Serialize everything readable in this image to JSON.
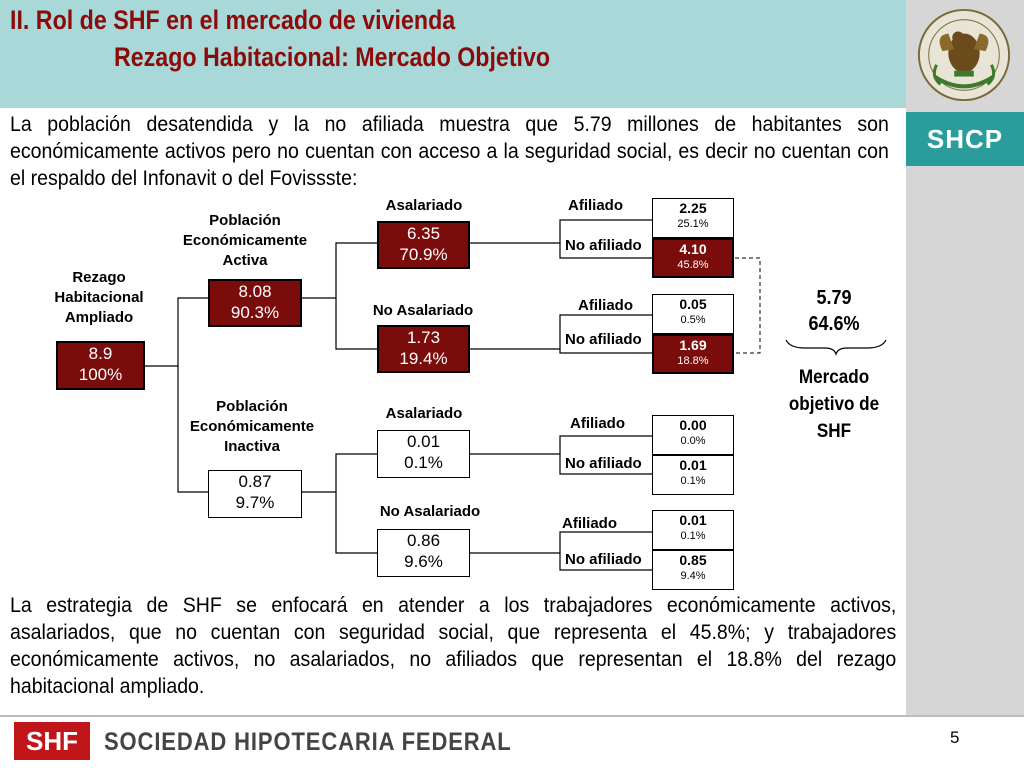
{
  "header": {
    "title_line1": "II. Rol de SHF en el mercado de vivienda",
    "title_line2": "Rezago Habitacional: Mercado Objetivo"
  },
  "sidebar": {
    "brand": "SHCP",
    "seal_icon": "mexican-coat-of-arms-seal"
  },
  "intro_text": "La población desatendida y la no afiliada muestra que 5.79 millones de habitantes son económicamente activos pero no cuentan con acceso a la seguridad social, es decir no cuentan con el respaldo del Infonavit o del Fovissste:",
  "tree": {
    "root": {
      "label": "Rezago Habitacional Ampliado",
      "value": "8.9",
      "pct": "100%"
    },
    "activa": {
      "label": "Población Económicamente Activa",
      "value": "8.08",
      "pct": "90.3%",
      "asalariado": {
        "label": "Asalariado",
        "value": "6.35",
        "pct": "70.9%",
        "afiliado": {
          "label": "Afiliado",
          "value": "2.25",
          "pct": "25.1%"
        },
        "no_afiliado": {
          "label": "No afiliado",
          "value": "4.10",
          "pct": "45.8%"
        }
      },
      "no_asalariado": {
        "label": "No Asalariado",
        "value": "1.73",
        "pct": "19.4%",
        "afiliado": {
          "label": "Afiliado",
          "value": "0.05",
          "pct": "0.5%"
        },
        "no_afiliado": {
          "label": "No afiliado",
          "value": "1.69",
          "pct": "18.8%"
        }
      }
    },
    "inactiva": {
      "label": "Población Económicamente Inactiva",
      "value": "0.87",
      "pct": "9.7%",
      "asalariado": {
        "label": "Asalariado",
        "value": "0.01",
        "pct": "0.1%",
        "afiliado": {
          "label": "Afiliado",
          "value": "0.00",
          "pct": "0.0%"
        },
        "no_afiliado": {
          "label": "No afiliado",
          "value": "0.01",
          "pct": "0.1%"
        }
      },
      "no_asalariado": {
        "label": "No Asalariado",
        "value": "0.86",
        "pct": "9.6%",
        "afiliado": {
          "label": "Afiliado",
          "value": "0.01",
          "pct": "0.1%"
        },
        "no_afiliado": {
          "label": "No afiliado",
          "value": "0.85",
          "pct": "9.4%"
        }
      }
    }
  },
  "summary": {
    "value": "5.79",
    "pct": "64.6%",
    "label": "Mercado objetivo de SHF"
  },
  "outro_text": "La estrategia de SHF se enfocará en atender a los trabajadores económicamente activos, asalariados, que no cuentan con seguridad social, que representa el 45.8%; y trabajadores económicamente activos, no asalariados, no afiliados que representan el 18.8% del rezago habitacional ampliado.",
  "footer": {
    "logo": "SHF",
    "org_name": "SOCIEDAD HIPOTECARIA FEDERAL",
    "page_number": "5"
  },
  "colors": {
    "header_bg": "#a8d8d8",
    "title": "#8b0a0a",
    "dark_box": "#7a0c0c",
    "shcp_band": "#2a9c9c",
    "sidebar": "#d6d6d6",
    "shf_red": "#c0161a"
  }
}
